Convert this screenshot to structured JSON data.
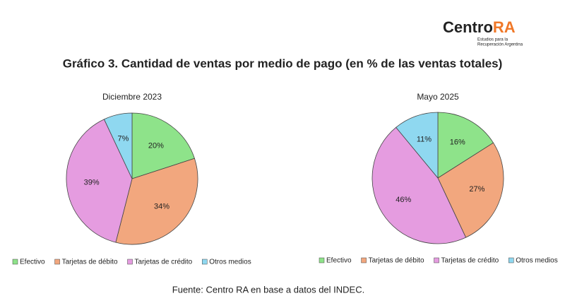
{
  "logo": {
    "name": "Centro",
    "accent": "RA",
    "tagline": [
      "Estudios para la",
      "Recuperación Argentina"
    ]
  },
  "title": "Gráfico 3. Cantidad de ventas por medio de pago (en % de las ventas totales)",
  "source": "Fuente: Centro RA en base a datos del INDEC.",
  "chart_data": [
    {
      "type": "pie",
      "subtitle": "Diciembre 2023",
      "categories": [
        "Efectivo",
        "Tarjetas de débito",
        "Tarjetas de crédito",
        "Otros medios"
      ],
      "values": [
        20,
        34,
        39,
        7
      ],
      "value_labels": [
        "20%",
        "34%",
        "39%",
        "7%"
      ],
      "colors": [
        "#8ee38a",
        "#f2a77e",
        "#e59ce0",
        "#8fd8f0"
      ]
    },
    {
      "type": "pie",
      "subtitle": "Mayo 2025",
      "categories": [
        "Efectivo",
        "Tarjetas de débito",
        "Tarjetas de crédito",
        "Otros medios"
      ],
      "values": [
        16,
        27,
        46,
        11
      ],
      "value_labels": [
        "16%",
        "27%",
        "46%",
        "11%"
      ],
      "colors": [
        "#8ee38a",
        "#f2a77e",
        "#e59ce0",
        "#8fd8f0"
      ]
    }
  ]
}
